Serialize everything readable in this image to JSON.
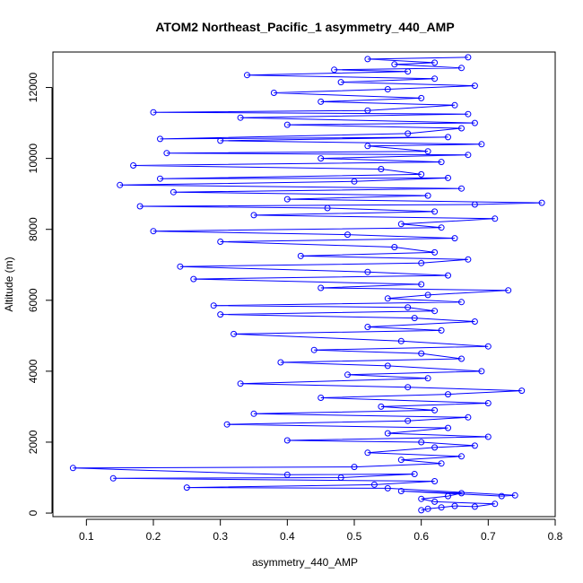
{
  "chart_data": {
    "type": "scatter",
    "title": "ATOM2 Northeast_Pacific_1 asymmetry_440_AMP",
    "xlabel": "asymmetry_440_AMP",
    "ylabel": "Altitude (m)",
    "xlim": [
      0.05,
      0.8
    ],
    "ylim": [
      -100,
      13000
    ],
    "x_ticks": [
      0.1,
      0.2,
      0.3,
      0.4,
      0.5,
      0.6,
      0.7,
      0.8
    ],
    "y_ticks": [
      0,
      2000,
      4000,
      6000,
      8000,
      10000,
      12000
    ],
    "x_tick_labels": [
      "0.1",
      "0.2",
      "0.3",
      "0.4",
      "0.5",
      "0.6",
      "0.7",
      "0.8"
    ],
    "y_tick_labels": [
      "0",
      "2000",
      "4000",
      "6000",
      "8000",
      "10000",
      "12000"
    ],
    "grid": false,
    "legend": "none",
    "color": "#0000ff",
    "marker": "open-circle",
    "connected": true,
    "series": [
      {
        "points": [
          [
            0.6,
            80
          ],
          [
            0.61,
            120
          ],
          [
            0.63,
            160
          ],
          [
            0.65,
            200
          ],
          [
            0.68,
            180
          ],
          [
            0.71,
            260
          ],
          [
            0.62,
            320
          ],
          [
            0.6,
            400
          ],
          [
            0.64,
            480
          ],
          [
            0.66,
            560
          ],
          [
            0.57,
            620
          ],
          [
            0.72,
            480
          ],
          [
            0.74,
            500
          ],
          [
            0.55,
            700
          ],
          [
            0.25,
            720
          ],
          [
            0.53,
            800
          ],
          [
            0.62,
            900
          ],
          [
            0.14,
            980
          ],
          [
            0.48,
            1000
          ],
          [
            0.59,
            1100
          ],
          [
            0.4,
            1080
          ],
          [
            0.08,
            1270
          ],
          [
            0.5,
            1300
          ],
          [
            0.63,
            1400
          ],
          [
            0.57,
            1500
          ],
          [
            0.66,
            1600
          ],
          [
            0.52,
            1700
          ],
          [
            0.62,
            1850
          ],
          [
            0.68,
            1900
          ],
          [
            0.6,
            2000
          ],
          [
            0.4,
            2050
          ],
          [
            0.7,
            2150
          ],
          [
            0.55,
            2250
          ],
          [
            0.64,
            2400
          ],
          [
            0.31,
            2500
          ],
          [
            0.58,
            2600
          ],
          [
            0.67,
            2700
          ],
          [
            0.35,
            2800
          ],
          [
            0.62,
            2900
          ],
          [
            0.54,
            3000
          ],
          [
            0.7,
            3100
          ],
          [
            0.45,
            3250
          ],
          [
            0.64,
            3350
          ],
          [
            0.75,
            3450
          ],
          [
            0.58,
            3550
          ],
          [
            0.33,
            3650
          ],
          [
            0.61,
            3800
          ],
          [
            0.49,
            3900
          ],
          [
            0.69,
            4000
          ],
          [
            0.55,
            4150
          ],
          [
            0.39,
            4250
          ],
          [
            0.66,
            4350
          ],
          [
            0.6,
            4500
          ],
          [
            0.44,
            4600
          ],
          [
            0.7,
            4700
          ],
          [
            0.57,
            4850
          ],
          [
            0.32,
            5050
          ],
          [
            0.63,
            5150
          ],
          [
            0.52,
            5250
          ],
          [
            0.68,
            5400
          ],
          [
            0.59,
            5500
          ],
          [
            0.3,
            5600
          ],
          [
            0.62,
            5700
          ],
          [
            0.58,
            5800
          ],
          [
            0.29,
            5850
          ],
          [
            0.66,
            5950
          ],
          [
            0.55,
            6050
          ],
          [
            0.61,
            6150
          ],
          [
            0.73,
            6280
          ],
          [
            0.45,
            6350
          ],
          [
            0.6,
            6450
          ],
          [
            0.26,
            6600
          ],
          [
            0.64,
            6700
          ],
          [
            0.52,
            6800
          ],
          [
            0.24,
            6950
          ],
          [
            0.6,
            7050
          ],
          [
            0.67,
            7150
          ],
          [
            0.42,
            7250
          ],
          [
            0.62,
            7350
          ],
          [
            0.56,
            7500
          ],
          [
            0.3,
            7650
          ],
          [
            0.65,
            7750
          ],
          [
            0.49,
            7850
          ],
          [
            0.2,
            7950
          ],
          [
            0.63,
            8050
          ],
          [
            0.57,
            8150
          ],
          [
            0.71,
            8300
          ],
          [
            0.35,
            8400
          ],
          [
            0.62,
            8500
          ],
          [
            0.46,
            8600
          ],
          [
            0.18,
            8650
          ],
          [
            0.68,
            8700
          ],
          [
            0.78,
            8750
          ],
          [
            0.4,
            8850
          ],
          [
            0.61,
            8950
          ],
          [
            0.23,
            9050
          ],
          [
            0.66,
            9150
          ],
          [
            0.15,
            9250
          ],
          [
            0.5,
            9350
          ],
          [
            0.64,
            9450
          ],
          [
            0.21,
            9430
          ],
          [
            0.6,
            9550
          ],
          [
            0.54,
            9700
          ],
          [
            0.17,
            9800
          ],
          [
            0.63,
            9900
          ],
          [
            0.45,
            10000
          ],
          [
            0.67,
            10100
          ],
          [
            0.22,
            10150
          ],
          [
            0.61,
            10200
          ],
          [
            0.52,
            10350
          ],
          [
            0.69,
            10400
          ],
          [
            0.3,
            10500
          ],
          [
            0.64,
            10600
          ],
          [
            0.21,
            10550
          ],
          [
            0.58,
            10700
          ],
          [
            0.66,
            10850
          ],
          [
            0.4,
            10950
          ],
          [
            0.68,
            11000
          ],
          [
            0.33,
            11150
          ],
          [
            0.67,
            11250
          ],
          [
            0.2,
            11300
          ],
          [
            0.52,
            11350
          ],
          [
            0.65,
            11500
          ],
          [
            0.45,
            11600
          ],
          [
            0.6,
            11700
          ],
          [
            0.38,
            11850
          ],
          [
            0.55,
            11950
          ],
          [
            0.68,
            12050
          ],
          [
            0.48,
            12150
          ],
          [
            0.62,
            12250
          ],
          [
            0.34,
            12350
          ],
          [
            0.58,
            12450
          ],
          [
            0.47,
            12500
          ],
          [
            0.66,
            12550
          ],
          [
            0.56,
            12650
          ],
          [
            0.62,
            12700
          ],
          [
            0.52,
            12800
          ],
          [
            0.67,
            12850
          ]
        ]
      }
    ]
  }
}
